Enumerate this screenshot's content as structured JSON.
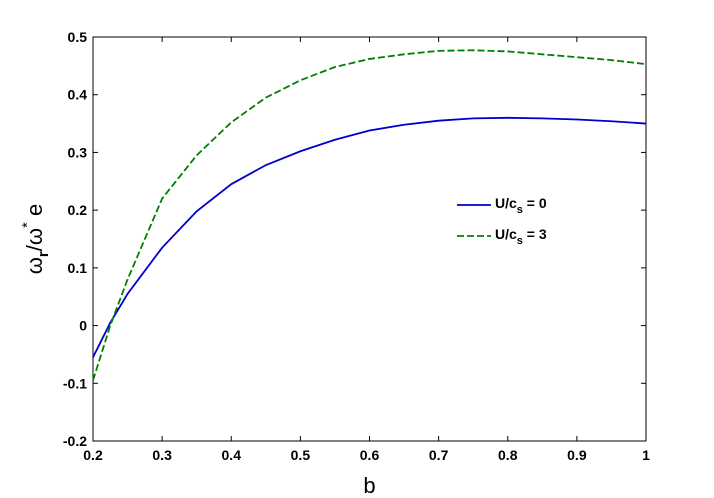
{
  "chart_data": {
    "type": "line",
    "xlabel": "b",
    "ylabel": {
      "main": "ω",
      "sub": "r",
      "mid": "/ω",
      "sup": "*",
      "tail": "e"
    },
    "xlim": [
      0.2,
      1.0
    ],
    "ylim": [
      -0.2,
      0.5
    ],
    "xticks": [
      0.2,
      0.3,
      0.4,
      0.5,
      0.6,
      0.7,
      0.8,
      0.9,
      1.0
    ],
    "xtick_labels": [
      "0.2",
      "0.3",
      "0.4",
      "0.5",
      "0.6",
      "0.7",
      "0.8",
      "0.9",
      "1"
    ],
    "yticks": [
      -0.2,
      -0.1,
      0,
      0.1,
      0.2,
      0.3,
      0.4,
      0.5
    ],
    "ytick_labels": [
      "-0.2",
      "-0.1",
      "0",
      "0.1",
      "0.2",
      "0.3",
      "0.4",
      "0.5"
    ],
    "grid": false,
    "legend_position": "right-middle",
    "series": [
      {
        "legend": {
          "main": "U/c",
          "sub": "s",
          "tail": " = 0"
        },
        "color": "#0000cc",
        "dash": "solid",
        "x": [
          0.2,
          0.225,
          0.25,
          0.3,
          0.35,
          0.4,
          0.45,
          0.5,
          0.55,
          0.6,
          0.65,
          0.7,
          0.75,
          0.8,
          0.85,
          0.9,
          0.95,
          1.0
        ],
        "y": [
          -0.055,
          0.005,
          0.055,
          0.135,
          0.198,
          0.245,
          0.278,
          0.302,
          0.322,
          0.338,
          0.348,
          0.355,
          0.359,
          0.36,
          0.359,
          0.357,
          0.354,
          0.35
        ]
      },
      {
        "legend": {
          "main": "U/c",
          "sub": "s",
          "tail": " = 3"
        },
        "color": "#007f00",
        "dash": "dashed",
        "x": [
          0.2,
          0.225,
          0.25,
          0.3,
          0.35,
          0.4,
          0.45,
          0.5,
          0.55,
          0.6,
          0.65,
          0.7,
          0.75,
          0.8,
          0.85,
          0.9,
          0.95,
          1.0
        ],
        "y": [
          -0.095,
          0.0,
          0.08,
          0.22,
          0.295,
          0.352,
          0.395,
          0.425,
          0.448,
          0.462,
          0.47,
          0.476,
          0.477,
          0.475,
          0.47,
          0.465,
          0.46,
          0.453
        ]
      }
    ]
  }
}
